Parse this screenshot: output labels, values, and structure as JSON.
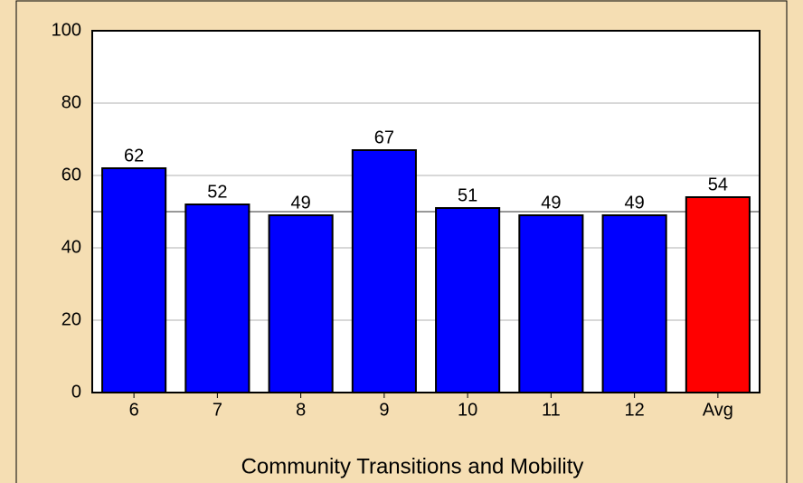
{
  "chart_data": {
    "type": "bar",
    "x_label": "Community Transitions and Mobility",
    "categories": [
      "6",
      "7",
      "8",
      "9",
      "10",
      "11",
      "12",
      "Avg"
    ],
    "values": [
      62,
      52,
      49,
      67,
      51,
      49,
      49,
      54
    ],
    "colors": [
      "#0000ff",
      "#0000ff",
      "#0000ff",
      "#0000ff",
      "#0000ff",
      "#0000ff",
      "#0000ff",
      "#ff0000"
    ],
    "ylim": [
      0,
      100
    ],
    "yticks": [
      0,
      20,
      40,
      60,
      80,
      100
    ],
    "grid": true,
    "reference_line": 50
  }
}
